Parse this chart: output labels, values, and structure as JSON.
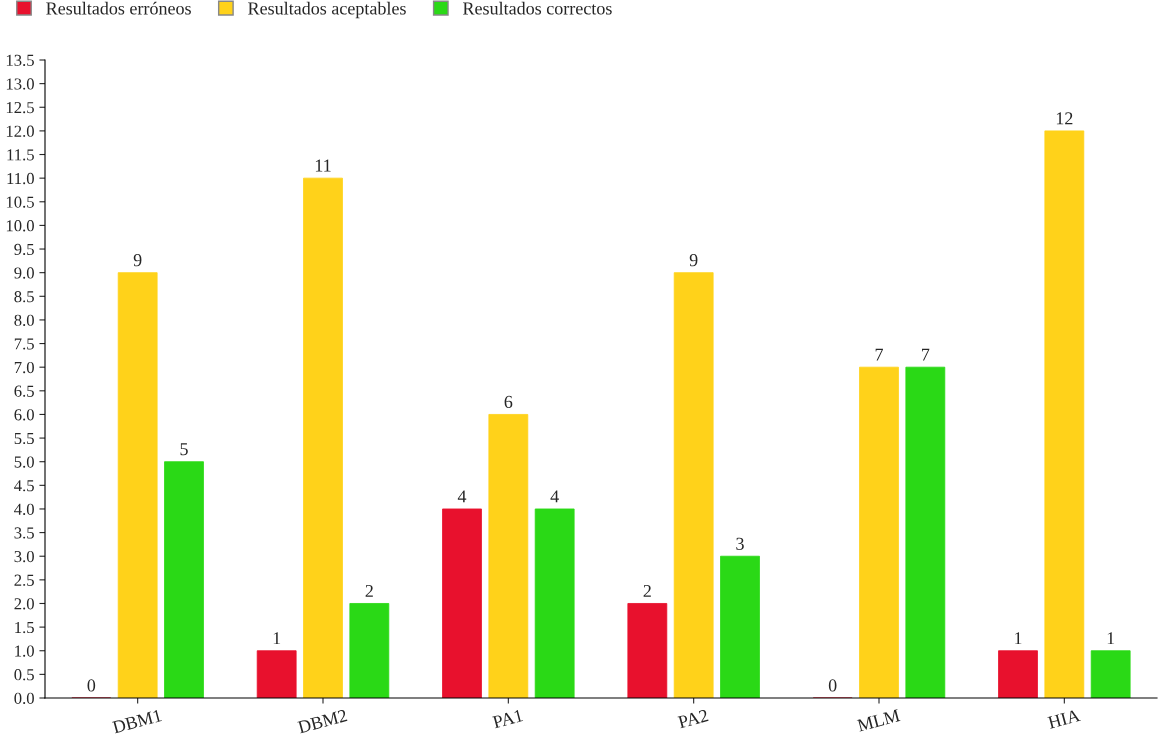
{
  "chart_data": {
    "type": "bar",
    "categories": [
      "DBM1",
      "DBM2",
      "PA1",
      "PA2",
      "MLM",
      "HIA"
    ],
    "series": [
      {
        "name": "Resultados erróneos",
        "color": "#e8112d",
        "values": [
          0,
          1,
          4,
          2,
          0,
          1
        ]
      },
      {
        "name": "Resultados aceptables",
        "color": "#ffd21a",
        "values": [
          9,
          11,
          6,
          9,
          7,
          12
        ]
      },
      {
        "name": "Resultados correctos",
        "color": "#2ad916",
        "values": [
          5,
          2,
          4,
          3,
          7,
          1
        ]
      }
    ],
    "ylim": [
      0,
      13.5
    ],
    "yticks": [
      {
        "value": 0,
        "label": "0.0"
      },
      0.5,
      {
        "value": 1,
        "label": "1.0"
      },
      1.5,
      {
        "value": 2,
        "label": "2.0"
      },
      2.5,
      {
        "value": 3,
        "label": "3.0"
      },
      3.5,
      {
        "value": 4,
        "label": "4.0"
      },
      4.5,
      {
        "value": 5,
        "label": "5.0"
      },
      5.5,
      {
        "value": 6,
        "label": "6.0"
      },
      6.5,
      {
        "value": 7,
        "label": "7.0"
      },
      7.5,
      {
        "value": 8,
        "label": "8.0"
      },
      8.5,
      {
        "value": 9,
        "label": "9.0"
      },
      9.5,
      {
        "value": 10,
        "label": "10.0"
      },
      10.5,
      {
        "value": 11,
        "label": "11.0"
      },
      11.5,
      {
        "value": 12,
        "label": "12.0"
      },
      12.5,
      {
        "value": 13,
        "label": "13.0"
      },
      13.5
    ],
    "data_labels": true,
    "grid": false,
    "legend": "top left"
  }
}
